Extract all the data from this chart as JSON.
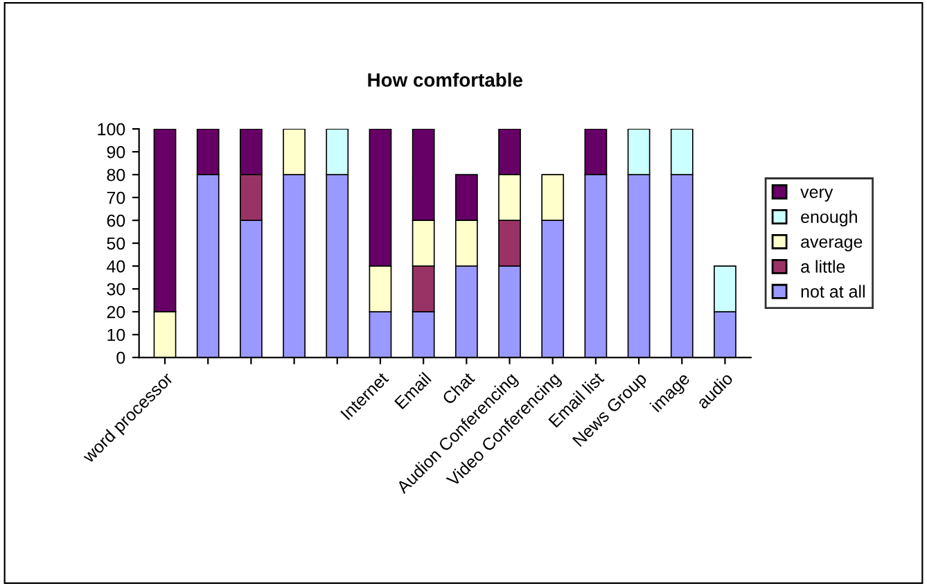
{
  "chart_data": {
    "type": "bar",
    "title": "How comfortable",
    "stacked": true,
    "categories": [
      "word processor",
      null,
      null,
      null,
      null,
      "Internet",
      "Email",
      "Chat",
      "Audion Conferencing",
      "Video Conferencing",
      "Email list",
      "News Group",
      "image",
      "audio"
    ],
    "series": [
      {
        "name": "not at all",
        "color": "#9999ff",
        "values": [
          0,
          80,
          60,
          80,
          80,
          20,
          20,
          40,
          40,
          60,
          80,
          80,
          80,
          20
        ]
      },
      {
        "name": "a little",
        "color": "#993366",
        "values": [
          0,
          0,
          20,
          0,
          0,
          0,
          20,
          0,
          20,
          0,
          0,
          0,
          0,
          0
        ]
      },
      {
        "name": "average",
        "color": "#ffffcc",
        "values": [
          20,
          0,
          0,
          20,
          0,
          20,
          20,
          20,
          20,
          20,
          0,
          0,
          0,
          0
        ]
      },
      {
        "name": "enough",
        "color": "#ccffff",
        "values": [
          0,
          0,
          0,
          0,
          20,
          0,
          0,
          0,
          0,
          0,
          0,
          20,
          20,
          20
        ]
      },
      {
        "name": "very",
        "color": "#660066",
        "values": [
          80,
          20,
          20,
          0,
          0,
          60,
          40,
          20,
          20,
          0,
          20,
          0,
          0,
          0
        ]
      }
    ],
    "ylim": [
      0,
      100
    ],
    "yticks": [
      0,
      10,
      20,
      30,
      40,
      50,
      60,
      70,
      80,
      90,
      100
    ],
    "grid": false,
    "legend": "right"
  }
}
